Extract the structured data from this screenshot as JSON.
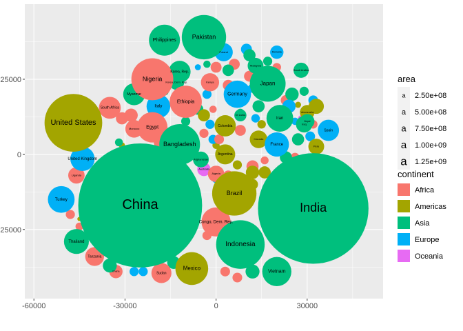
{
  "chart_data": {
    "type": "scatter",
    "title": "",
    "xlabel": "",
    "ylabel": "",
    "xlim": [
      -63000,
      55000
    ],
    "ylim": [
      -48000,
      50000
    ],
    "x_ticks": [
      -60000,
      -30000,
      0,
      30000
    ],
    "x_tick_labels": [
      "-60000",
      "-30000",
      "0",
      "30000"
    ],
    "y_ticks": [
      -25000,
      0,
      25000
    ],
    "y_tick_labels": [
      "-25000",
      "0",
      "25000"
    ],
    "grid": true,
    "colors": {
      "Africa": "#F8766D",
      "Americas": "#A3A500",
      "Asia": "#00BF7D",
      "Europe": "#00B0F6",
      "Oceania": "#E76BF3"
    },
    "labeled_bubbles": [
      {
        "label": "China",
        "continent": "Asia",
        "x": -25000,
        "y": -17000,
        "r": 20400,
        "fs": 20
      },
      {
        "label": "India",
        "continent": "Asia",
        "x": 32000,
        "y": -18000,
        "r": 18200,
        "fs": 18
      },
      {
        "label": "United States",
        "continent": "Americas",
        "x": -47000,
        "y": 10500,
        "r": 9500,
        "fs": 11
      },
      {
        "label": "Indonesia",
        "continent": "Asia",
        "x": 8000,
        "y": -30000,
        "r": 8000,
        "fs": 10
      },
      {
        "label": "Brazil",
        "continent": "Americas",
        "x": 6000,
        "y": -13000,
        "r": 7300,
        "fs": 9
      },
      {
        "label": "Pakistan",
        "continent": "Asia",
        "x": -4000,
        "y": 39000,
        "r": 7300,
        "fs": 9
      },
      {
        "label": "Nigeria",
        "continent": "Africa",
        "x": -21000,
        "y": 25000,
        "r": 6900,
        "fs": 9
      },
      {
        "label": "Bangladesh",
        "continent": "Asia",
        "x": -12000,
        "y": 3300,
        "r": 6700,
        "fs": 9
      },
      {
        "label": "Japan",
        "continent": "Asia",
        "x": 17000,
        "y": 23500,
        "r": 5900,
        "fs": 8
      },
      {
        "label": "Mexico",
        "continent": "Americas",
        "x": -8000,
        "y": -38000,
        "r": 5400,
        "fs": 8
      },
      {
        "label": "Philippines",
        "continent": "Asia",
        "x": -17000,
        "y": 38000,
        "r": 5100,
        "fs": 7
      },
      {
        "label": "Congo, Dem. Rep.",
        "continent": "Africa",
        "x": 0,
        "y": -22500,
        "r": 4800,
        "fs": 6
      },
      {
        "label": "Vietnam",
        "continent": "Asia",
        "x": 20000,
        "y": -39000,
        "r": 4800,
        "fs": 7
      },
      {
        "label": "Ethiopia",
        "continent": "Africa",
        "x": -10000,
        "y": 17500,
        "r": 5300,
        "fs": 7
      },
      {
        "label": "Egypt",
        "continent": "Africa",
        "x": -21000,
        "y": 9000,
        "r": 5000,
        "fs": 7
      },
      {
        "label": "Germany",
        "continent": "Europe",
        "x": 7000,
        "y": 20000,
        "r": 4500,
        "fs": 7
      },
      {
        "label": "Iran",
        "continent": "Asia",
        "x": 21000,
        "y": 12000,
        "r": 4400,
        "fs": 6
      },
      {
        "label": "Turkey",
        "continent": "Europe",
        "x": -51000,
        "y": -15000,
        "r": 4400,
        "fs": 6
      },
      {
        "label": "Thailand",
        "continent": "Asia",
        "x": -46000,
        "y": -29000,
        "r": 4100,
        "fs": 6
      },
      {
        "label": "France",
        "continent": "Europe",
        "x": 20000,
        "y": 3300,
        "r": 4000,
        "fs": 6
      },
      {
        "label": "United Kingdom",
        "continent": "Europe",
        "x": -44000,
        "y": -1500,
        "r": 4000,
        "fs": 6
      },
      {
        "label": "Italy",
        "continent": "Europe",
        "x": -19000,
        "y": 16000,
        "r": 3900,
        "fs": 6
      },
      {
        "label": "South Africa",
        "continent": "Africa",
        "x": -35000,
        "y": 15500,
        "r": 3600,
        "fs": 5
      },
      {
        "label": "Myanmar",
        "continent": "Asia",
        "x": -27000,
        "y": 20000,
        "r": 3600,
        "fs": 5
      },
      {
        "label": "Korea, Rep.",
        "continent": "Asia",
        "x": -12000,
        "y": 27500,
        "r": 3600,
        "fs": 5
      },
      {
        "label": "Colombia",
        "continent": "Americas",
        "x": 3000,
        "y": 9500,
        "r": 3500,
        "fs": 5
      },
      {
        "label": "Spain",
        "continent": "Europe",
        "x": 37000,
        "y": 8000,
        "r": 3500,
        "fs": 5
      },
      {
        "label": "Argentina",
        "continent": "Americas",
        "x": 3000,
        "y": 0,
        "r": 3300,
        "fs": 5
      },
      {
        "label": "Sudan",
        "continent": "Africa",
        "x": -18000,
        "y": -39500,
        "r": 3300,
        "fs": 5
      },
      {
        "label": "Tanzania",
        "continent": "Africa",
        "x": -40000,
        "y": -34000,
        "r": 3100,
        "fs": 5
      },
      {
        "label": "Kenya",
        "continent": "Africa",
        "x": -2000,
        "y": 24000,
        "r": 3000,
        "fs": 4
      },
      {
        "label": "Poland",
        "continent": "Europe",
        "x": 2500,
        "y": 34000,
        "r": 3000,
        "fs": 4
      },
      {
        "label": "Morocco",
        "continent": "Africa",
        "x": -27000,
        "y": 8500,
        "r": 2900,
        "fs": 4
      },
      {
        "label": "Canada",
        "continent": "Americas",
        "x": 14000,
        "y": 5000,
        "r": 2900,
        "fs": 4
      },
      {
        "label": "Uganda",
        "continent": "Africa",
        "x": -46000,
        "y": -7000,
        "r": 2700,
        "fs": 4
      },
      {
        "label": "Algeria",
        "continent": "Africa",
        "x": 0,
        "y": -6500,
        "r": 2700,
        "fs": 4
      },
      {
        "label": "Iraq",
        "continent": "Asia",
        "x": 29000,
        "y": 10000,
        "r": 2700,
        "fs": 4
      },
      {
        "label": "Korea, Dem. Rep.",
        "continent": "Asia",
        "x": -13000,
        "y": 24000,
        "r": 2500,
        "fs": 4
      },
      {
        "label": "Afghanistan",
        "continent": "Asia",
        "x": -5000,
        "y": -1700,
        "r": 2600,
        "fs": 4
      },
      {
        "label": "Peru",
        "continent": "Americas",
        "x": 33000,
        "y": 2600,
        "r": 2600,
        "fs": 4
      },
      {
        "label": "Venezuela",
        "continent": "Americas",
        "x": 30000,
        "y": 14000,
        "r": 2400,
        "fs": 4
      },
      {
        "label": "Malaysia",
        "continent": "Asia",
        "x": 13000,
        "y": 29500,
        "r": 2600,
        "fs": 4
      },
      {
        "label": "Saudi Arabia",
        "continent": "Asia",
        "x": 28000,
        "y": 28000,
        "r": 2500,
        "fs": 4
      },
      {
        "label": "Nepal",
        "continent": "Asia",
        "x": 30000,
        "y": 11000,
        "r": 2400,
        "fs": 3.5
      },
      {
        "label": "Ghana",
        "continent": "Africa",
        "x": -33000,
        "y": -39000,
        "r": 2200,
        "fs": 3.5
      },
      {
        "label": "Romania",
        "continent": "Europe",
        "x": 20000,
        "y": 34000,
        "r": 2200,
        "fs": 3.5
      },
      {
        "label": "Sri Lanka",
        "continent": "Asia",
        "x": 8000,
        "y": 13000,
        "r": 2000,
        "fs": 3.5
      },
      {
        "label": "Australia",
        "continent": "Oceania",
        "x": -4000,
        "y": -5000,
        "r": 2200,
        "fs": 4
      }
    ],
    "extra_bubbles": [
      {
        "continent": "Americas",
        "x": -4000,
        "y": 13000,
        "r": 2000
      },
      {
        "continent": "Americas",
        "x": 33000,
        "y": 16000,
        "r": 2500
      },
      {
        "continent": "Americas",
        "x": 12000,
        "y": -6000,
        "r": 2200
      },
      {
        "continent": "Americas",
        "x": 16000,
        "y": -6000,
        "r": 2000
      },
      {
        "continent": "Americas",
        "x": 12000,
        "y": -10000,
        "r": 1800
      },
      {
        "continent": "Americas",
        "x": -10000,
        "y": 7000,
        "r": 1800
      },
      {
        "continent": "Americas",
        "x": 15000,
        "y": 10000,
        "r": 1400
      },
      {
        "continent": "Americas",
        "x": 27000,
        "y": 16500,
        "r": 1000
      },
      {
        "continent": "Americas",
        "x": -31000,
        "y": 3000,
        "r": 1000
      },
      {
        "continent": "Americas",
        "x": -45000,
        "y": -21500,
        "r": 700
      },
      {
        "continent": "Americas",
        "x": 0,
        "y": 3000,
        "r": 1200
      },
      {
        "continent": "Americas",
        "x": 7000,
        "y": -3500,
        "r": 1500
      },
      {
        "continent": "Asia",
        "x": 25000,
        "y": 20000,
        "r": 2200
      },
      {
        "continent": "Asia",
        "x": 4000,
        "y": 28000,
        "r": 1900
      },
      {
        "continent": "Asia",
        "x": 29000,
        "y": 21000,
        "r": 1500
      },
      {
        "continent": "Asia",
        "x": -14000,
        "y": -36000,
        "r": 2100
      },
      {
        "continent": "Asia",
        "x": -35000,
        "y": -37000,
        "r": 2300
      },
      {
        "continent": "Asia",
        "x": 14000,
        "y": 16000,
        "r": 2000
      },
      {
        "continent": "Asia",
        "x": 23000,
        "y": -1000,
        "r": 2000
      },
      {
        "continent": "Asia",
        "x": 11000,
        "y": 33000,
        "r": 2000
      },
      {
        "continent": "Asia",
        "x": -17000,
        "y": 21000,
        "r": 1400
      },
      {
        "continent": "Asia",
        "x": -10000,
        "y": 11000,
        "r": 1500
      },
      {
        "continent": "Asia",
        "x": 27000,
        "y": 5000,
        "r": 2000
      },
      {
        "continent": "Asia",
        "x": -32000,
        "y": 4000,
        "r": 1300
      },
      {
        "continent": "Asia",
        "x": -38000,
        "y": -26000,
        "r": 1200
      },
      {
        "continent": "Asia",
        "x": 12000,
        "y": -39000,
        "r": 2300
      },
      {
        "continent": "Asia",
        "x": -3000,
        "y": 30000,
        "r": 1200
      },
      {
        "continent": "Asia",
        "x": -6000,
        "y": 15000,
        "r": 1800
      },
      {
        "continent": "Asia",
        "x": 8000,
        "y": 14000,
        "r": 1200
      },
      {
        "continent": "Asia",
        "x": 17000,
        "y": 31000,
        "r": 1500
      },
      {
        "continent": "Africa",
        "x": -31000,
        "y": 12000,
        "r": 2000
      },
      {
        "continent": "Africa",
        "x": -18000,
        "y": 4000,
        "r": 2500
      },
      {
        "continent": "Africa",
        "x": -28000,
        "y": 13000,
        "r": 2200
      },
      {
        "continent": "Africa",
        "x": 0,
        "y": 29000,
        "r": 1800
      },
      {
        "continent": "Africa",
        "x": 4000,
        "y": 23000,
        "r": 1800
      },
      {
        "continent": "Africa",
        "x": 1000,
        "y": 5000,
        "r": 1600
      },
      {
        "continent": "Africa",
        "x": 12000,
        "y": -4000,
        "r": 2000
      },
      {
        "continent": "Africa",
        "x": 8000,
        "y": 8000,
        "r": 1800
      },
      {
        "continent": "Africa",
        "x": 16000,
        "y": -2000,
        "r": 1300
      },
      {
        "continent": "Africa",
        "x": 26000,
        "y": -1000,
        "r": 1500
      },
      {
        "continent": "Africa",
        "x": -4000,
        "y": 7000,
        "r": 1500
      },
      {
        "continent": "Africa",
        "x": 6000,
        "y": 30000,
        "r": 1800
      },
      {
        "continent": "Africa",
        "x": 11000,
        "y": 26000,
        "r": 1800
      },
      {
        "continent": "Africa",
        "x": 23000,
        "y": 18000,
        "r": 1700
      },
      {
        "continent": "Africa",
        "x": -1000,
        "y": 15000,
        "r": 1200
      },
      {
        "continent": "Africa",
        "x": 3000,
        "y": -27000,
        "r": 1000
      },
      {
        "continent": "Africa",
        "x": 3000,
        "y": -39000,
        "r": 1600
      },
      {
        "continent": "Africa",
        "x": 7000,
        "y": -41000,
        "r": 1600
      },
      {
        "continent": "Africa",
        "x": -48000,
        "y": -20000,
        "r": 1500
      },
      {
        "continent": "Africa",
        "x": -45000,
        "y": -24000,
        "r": 1300
      },
      {
        "continent": "Africa",
        "x": -3000,
        "y": -27000,
        "r": 1500
      },
      {
        "continent": "Africa",
        "x": 4000,
        "y": -7000,
        "r": 1600
      },
      {
        "continent": "Africa",
        "x": 20000,
        "y": 29000,
        "r": 1400
      },
      {
        "continent": "Africa",
        "x": 32000,
        "y": 10000,
        "r": 1400
      },
      {
        "continent": "Europe",
        "x": -2000,
        "y": 10000,
        "r": 1500
      },
      {
        "continent": "Europe",
        "x": 24000,
        "y": 16000,
        "r": 2200
      },
      {
        "continent": "Europe",
        "x": 10000,
        "y": 35000,
        "r": 1800
      },
      {
        "continent": "Europe",
        "x": 12000,
        "y": 22000,
        "r": 1500
      },
      {
        "continent": "Europe",
        "x": -3000,
        "y": 20000,
        "r": 1500
      },
      {
        "continent": "Europe",
        "x": 13000,
        "y": 12000,
        "r": 1400
      },
      {
        "continent": "Europe",
        "x": -1000,
        "y": 5000,
        "r": 1500
      },
      {
        "continent": "Europe",
        "x": -27000,
        "y": -39000,
        "r": 1500
      },
      {
        "continent": "Europe",
        "x": -24000,
        "y": -39000,
        "r": 1500
      },
      {
        "continent": "Europe",
        "x": 31000,
        "y": 6000,
        "r": 1600
      },
      {
        "continent": "Europe",
        "x": 26000,
        "y": 11000,
        "r": 1200
      },
      {
        "continent": "Europe",
        "x": 32000,
        "y": 18000,
        "r": 1600
      },
      {
        "continent": "Europe",
        "x": -6000,
        "y": 29000,
        "r": 1000
      },
      {
        "continent": "Europe",
        "x": 0,
        "y": -8000,
        "r": 1500
      },
      {
        "continent": "Oceania",
        "x": 28000,
        "y": 12000,
        "r": 1000
      }
    ]
  },
  "legend": {
    "size_title": "area",
    "size_items": [
      {
        "label": "2.50e+08",
        "glyph": "a",
        "fs": 9
      },
      {
        "label": "5.00e+08",
        "glyph": "a",
        "fs": 11
      },
      {
        "label": "7.50e+08",
        "glyph": "a",
        "fs": 13
      },
      {
        "label": "1.00e+09",
        "glyph": "a",
        "fs": 15
      },
      {
        "label": "1.25e+09",
        "glyph": "a",
        "fs": 17
      }
    ],
    "color_title": "continent",
    "color_items": [
      {
        "label": "Africa",
        "color": "#F8766D"
      },
      {
        "label": "Americas",
        "color": "#A3A500"
      },
      {
        "label": "Asia",
        "color": "#00BF7D"
      },
      {
        "label": "Europe",
        "color": "#00B0F6"
      },
      {
        "label": "Oceania",
        "color": "#E76BF3"
      }
    ]
  }
}
